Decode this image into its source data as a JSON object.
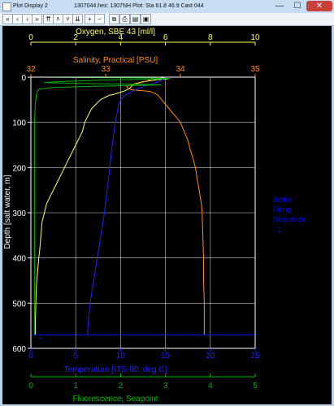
{
  "window": {
    "title": "Plot Display 2",
    "file_title": "1307044.hex: 1307NH Plot: Sta 81.8 46.9   Cast 044"
  },
  "window_buttons": {
    "minimize": "—",
    "maximize": "☐",
    "close": "✕"
  },
  "toolbar": {
    "buttons": [
      {
        "name": "first-icon",
        "glyph": "«"
      },
      {
        "name": "prev-icon",
        "glyph": "‹"
      },
      {
        "name": "next-icon",
        "glyph": "›"
      },
      {
        "name": "last-icon",
        "glyph": "»"
      },
      {
        "name": "up-double-icon",
        "glyph": "⇈"
      },
      {
        "name": "up-icon",
        "glyph": "˄"
      },
      {
        "name": "down-icon",
        "glyph": "˅"
      },
      {
        "name": "down-double-icon",
        "glyph": "⇊"
      },
      {
        "name": "zoom-in-icon",
        "glyph": "+"
      },
      {
        "name": "zoom-out-icon",
        "glyph": "−"
      },
      {
        "name": "copy-icon",
        "glyph": "⧉"
      },
      {
        "name": "print-icon",
        "glyph": "⎙"
      },
      {
        "name": "print-preview-icon",
        "glyph": "▤"
      },
      {
        "name": "save-icon",
        "glyph": "▣"
      }
    ]
  },
  "colors": {
    "oxygen": "#ffff66",
    "salinity": "#ff8c1a",
    "temperature": "#2020ff",
    "fluorescence": "#00b400",
    "bottle": "#0000ff",
    "grid": "#ffffff"
  },
  "chart_data": {
    "type": "line",
    "y_axis": {
      "label": "Depth [salt water, m]",
      "range": [
        0,
        600
      ],
      "ticks": [
        0,
        100,
        200,
        300,
        400,
        500,
        600
      ],
      "inverted": true
    },
    "x_axes": [
      {
        "id": "oxygen",
        "label": "Oxygen, SBE 43 [ml/l]",
        "position": "top",
        "range": [
          0,
          10
        ],
        "ticks": [
          0,
          2,
          4,
          6,
          8,
          10
        ],
        "tick_labels": [
          "0",
          "2",
          "4",
          "6",
          "8",
          "10"
        ]
      },
      {
        "id": "salinity",
        "label": "Salinity, Practical [PSU]",
        "position": "top",
        "range": [
          32,
          35
        ],
        "ticks": [
          32,
          33,
          34,
          35
        ],
        "tick_labels": [
          "32",
          "33",
          "34",
          "35"
        ]
      },
      {
        "id": "temperature",
        "label": "Temperature [ITS-90, deg C]",
        "position": "bottom",
        "range": [
          0,
          25
        ],
        "ticks": [
          0,
          5,
          10,
          15,
          20,
          25
        ],
        "tick_labels": [
          "0",
          "5",
          "10",
          "15",
          "20",
          "25"
        ]
      },
      {
        "id": "fluorescence",
        "label": "Fluorescence, Seapoint",
        "position": "bottom",
        "range": [
          0,
          5
        ],
        "ticks": [
          0,
          1,
          2,
          3,
          4,
          5
        ],
        "tick_labels": [
          "0",
          "1",
          "2",
          "3",
          "4",
          "5"
        ]
      }
    ],
    "grid": true,
    "legend": {
      "title_lines": [
        "Bottle",
        "Firing",
        "Sequence"
      ],
      "entries": [
        "1"
      ],
      "position": "right"
    },
    "bottle_marker": {
      "label": "1",
      "depth": 570
    },
    "series": [
      {
        "name": "Oxygen, SBE 43 [ml/l]",
        "axis": "oxygen",
        "points": [
          [
            6.0,
            0
          ],
          [
            5.8,
            2
          ],
          [
            6.1,
            4
          ],
          [
            5.6,
            6
          ],
          [
            5.3,
            8
          ],
          [
            5.0,
            10
          ],
          [
            4.6,
            15
          ],
          [
            4.5,
            20
          ],
          [
            4.4,
            25
          ],
          [
            4.2,
            30
          ],
          [
            3.9,
            35
          ],
          [
            3.7,
            38
          ],
          [
            3.5,
            40
          ],
          [
            3.3,
            45
          ],
          [
            3.1,
            50
          ],
          [
            2.9,
            60
          ],
          [
            2.7,
            70
          ],
          [
            2.6,
            80
          ],
          [
            2.4,
            100
          ],
          [
            2.3,
            120
          ],
          [
            2.1,
            140
          ],
          [
            1.9,
            160
          ],
          [
            1.7,
            180
          ],
          [
            1.5,
            200
          ],
          [
            1.3,
            220
          ],
          [
            1.1,
            240
          ],
          [
            0.9,
            260
          ],
          [
            0.7,
            280
          ],
          [
            0.6,
            300
          ],
          [
            0.5,
            320
          ],
          [
            0.45,
            350
          ],
          [
            0.4,
            380
          ],
          [
            0.35,
            400
          ],
          [
            0.3,
            430
          ],
          [
            0.25,
            460
          ],
          [
            0.22,
            500
          ],
          [
            0.2,
            540
          ],
          [
            0.2,
            570
          ]
        ]
      },
      {
        "name": "Salinity, Practical [PSU]",
        "axis": "salinity",
        "points": [
          [
            33.65,
            0
          ],
          [
            33.6,
            5
          ],
          [
            33.52,
            10
          ],
          [
            33.4,
            15
          ],
          [
            33.28,
            20
          ],
          [
            33.3,
            25
          ],
          [
            33.35,
            28
          ],
          [
            33.5,
            30
          ],
          [
            33.6,
            32
          ],
          [
            33.65,
            35
          ],
          [
            33.7,
            40
          ],
          [
            33.75,
            50
          ],
          [
            33.8,
            60
          ],
          [
            33.85,
            70
          ],
          [
            33.9,
            80
          ],
          [
            33.95,
            90
          ],
          [
            34.0,
            100
          ],
          [
            34.05,
            120
          ],
          [
            34.1,
            140
          ],
          [
            34.13,
            160
          ],
          [
            34.17,
            180
          ],
          [
            34.2,
            200
          ],
          [
            34.22,
            220
          ],
          [
            34.24,
            240
          ],
          [
            34.26,
            260
          ],
          [
            34.28,
            280
          ],
          [
            34.29,
            300
          ],
          [
            34.3,
            350
          ],
          [
            34.31,
            400
          ],
          [
            34.31,
            450
          ],
          [
            34.32,
            500
          ],
          [
            34.32,
            570
          ]
        ]
      },
      {
        "name": "Temperature [ITS-90, deg C]",
        "axis": "temperature",
        "points": [
          [
            15.0,
            0
          ],
          [
            14.7,
            5
          ],
          [
            14.2,
            10
          ],
          [
            13.5,
            15
          ],
          [
            13.0,
            18
          ],
          [
            12.6,
            20
          ],
          [
            12.0,
            25
          ],
          [
            11.5,
            30
          ],
          [
            11.0,
            35
          ],
          [
            10.5,
            40
          ],
          [
            10.0,
            50
          ],
          [
            9.8,
            60
          ],
          [
            9.6,
            80
          ],
          [
            9.4,
            100
          ],
          [
            9.2,
            130
          ],
          [
            9.0,
            160
          ],
          [
            8.8,
            200
          ],
          [
            8.5,
            250
          ],
          [
            8.2,
            300
          ],
          [
            7.8,
            350
          ],
          [
            7.4,
            400
          ],
          [
            7.0,
            450
          ],
          [
            6.6,
            500
          ],
          [
            6.4,
            540
          ],
          [
            6.3,
            570
          ]
        ]
      },
      {
        "name": "Fluorescence, Seapoint",
        "axis": "fluorescence",
        "points": [
          [
            0.15,
            0
          ],
          [
            1.5,
            1
          ],
          [
            2.8,
            2
          ],
          [
            3.1,
            3
          ],
          [
            2.5,
            5
          ],
          [
            1.8,
            6
          ],
          [
            1.2,
            8
          ],
          [
            0.6,
            10
          ],
          [
            0.3,
            12
          ],
          [
            1.0,
            14
          ],
          [
            2.4,
            16
          ],
          [
            2.9,
            17
          ],
          [
            2.0,
            19
          ],
          [
            1.1,
            21
          ],
          [
            0.5,
            23
          ],
          [
            0.2,
            26
          ],
          [
            0.15,
            30
          ],
          [
            0.12,
            40
          ],
          [
            0.1,
            60
          ],
          [
            0.08,
            100
          ],
          [
            0.08,
            570
          ]
        ]
      }
    ]
  }
}
